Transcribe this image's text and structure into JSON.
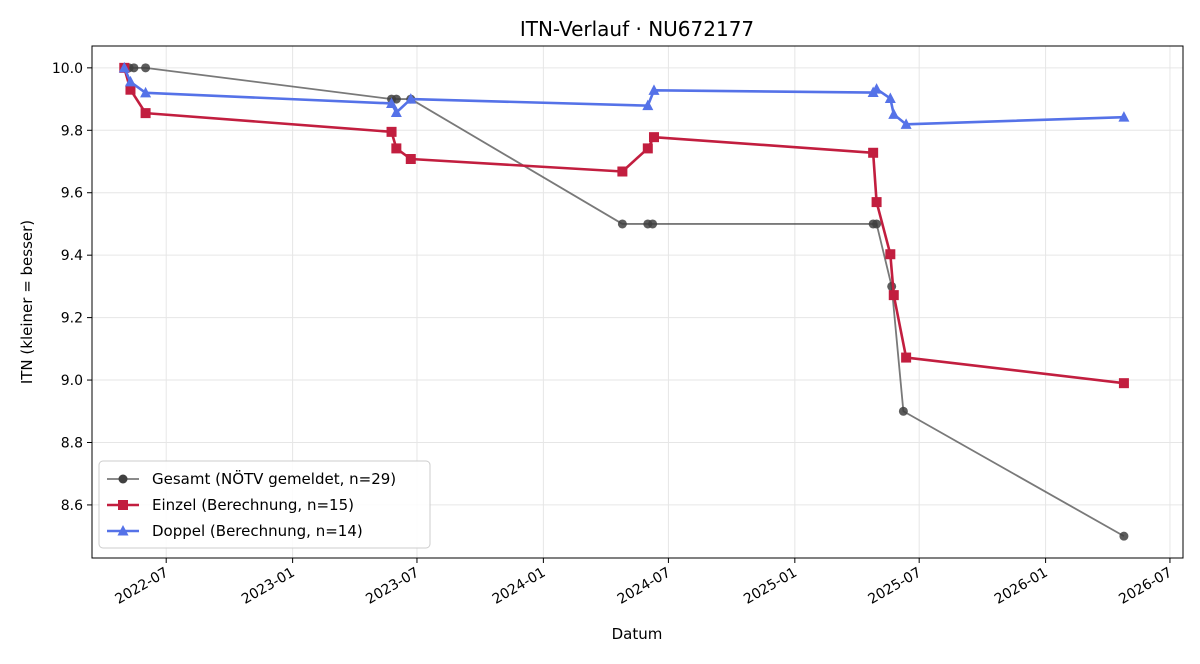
{
  "chart_data": {
    "type": "line",
    "title": "ITN-Verlauf · NU672177",
    "xlabel": "Datum",
    "ylabel": "ITN  (kleiner = besser)",
    "x_type": "date",
    "xlim": [
      "2022-03-15",
      "2026-07-20"
    ],
    "ylim": [
      8.43,
      10.07
    ],
    "x_ticks": [
      "2022-07-01",
      "2023-01-01",
      "2023-07-01",
      "2024-01-01",
      "2024-07-01",
      "2025-01-01",
      "2025-07-01",
      "2026-01-01",
      "2026-07-01"
    ],
    "x_tick_labels": [
      "2022-07",
      "2023-01",
      "2023-07",
      "2024-01",
      "2024-07",
      "2025-01",
      "2025-07",
      "2026-01",
      "2026-07"
    ],
    "y_ticks": [
      8.6,
      8.8,
      9.0,
      9.2,
      9.4,
      9.6,
      9.8,
      10.0
    ],
    "y_tick_labels": [
      "8.6",
      "8.8",
      "9.0",
      "9.2",
      "9.4",
      "9.6",
      "9.8",
      "10.0"
    ],
    "grid": true,
    "legend_position": "bottom-left",
    "series": [
      {
        "name": "Gesamt (NÖTV gemeldet, n=29)",
        "color": "#404040",
        "marker": "circle",
        "points": [
          {
            "x": "2022-05-01",
            "y": 10.0
          },
          {
            "x": "2022-05-08",
            "y": 10.0
          },
          {
            "x": "2022-05-15",
            "y": 10.0
          },
          {
            "x": "2022-06-01",
            "y": 10.0
          },
          {
            "x": "2023-05-25",
            "y": 9.9
          },
          {
            "x": "2023-06-01",
            "y": 9.9
          },
          {
            "x": "2023-06-22",
            "y": 9.9
          },
          {
            "x": "2024-04-25",
            "y": 9.5
          },
          {
            "x": "2024-06-01",
            "y": 9.5
          },
          {
            "x": "2024-06-08",
            "y": 9.5
          },
          {
            "x": "2025-04-25",
            "y": 9.5
          },
          {
            "x": "2025-04-30",
            "y": 9.5
          },
          {
            "x": "2025-05-22",
            "y": 9.3
          },
          {
            "x": "2025-06-08",
            "y": 8.9
          },
          {
            "x": "2026-04-25",
            "y": 8.5
          }
        ]
      },
      {
        "name": "Einzel (Berechnung, n=15)",
        "color": "#c21e3f",
        "marker": "square",
        "points": [
          {
            "x": "2022-05-01",
            "y": 10.0
          },
          {
            "x": "2022-05-10",
            "y": 9.93
          },
          {
            "x": "2022-06-01",
            "y": 9.855
          },
          {
            "x": "2023-05-25",
            "y": 9.795
          },
          {
            "x": "2023-06-01",
            "y": 9.742
          },
          {
            "x": "2023-06-22",
            "y": 9.708
          },
          {
            "x": "2024-04-25",
            "y": 9.668
          },
          {
            "x": "2024-06-01",
            "y": 9.742
          },
          {
            "x": "2024-06-10",
            "y": 9.778
          },
          {
            "x": "2025-04-25",
            "y": 9.728
          },
          {
            "x": "2025-04-30",
            "y": 9.57
          },
          {
            "x": "2025-05-20",
            "y": 9.403
          },
          {
            "x": "2025-05-25",
            "y": 9.272
          },
          {
            "x": "2025-06-12",
            "y": 9.072
          },
          {
            "x": "2026-04-25",
            "y": 8.99
          }
        ]
      },
      {
        "name": "Doppel (Berechnung, n=14)",
        "color": "#5572e8",
        "marker": "triangle",
        "points": [
          {
            "x": "2022-05-01",
            "y": 10.0
          },
          {
            "x": "2022-05-10",
            "y": 9.955
          },
          {
            "x": "2022-06-01",
            "y": 9.92
          },
          {
            "x": "2023-05-25",
            "y": 9.886
          },
          {
            "x": "2023-06-01",
            "y": 9.857
          },
          {
            "x": "2023-06-22",
            "y": 9.9
          },
          {
            "x": "2024-06-01",
            "y": 9.879
          },
          {
            "x": "2024-06-10",
            "y": 9.928
          },
          {
            "x": "2025-04-25",
            "y": 9.921
          },
          {
            "x": "2025-04-30",
            "y": 9.932
          },
          {
            "x": "2025-05-20",
            "y": 9.902
          },
          {
            "x": "2025-05-25",
            "y": 9.851
          },
          {
            "x": "2025-06-12",
            "y": 9.819
          },
          {
            "x": "2026-04-25",
            "y": 9.842
          }
        ]
      }
    ]
  }
}
